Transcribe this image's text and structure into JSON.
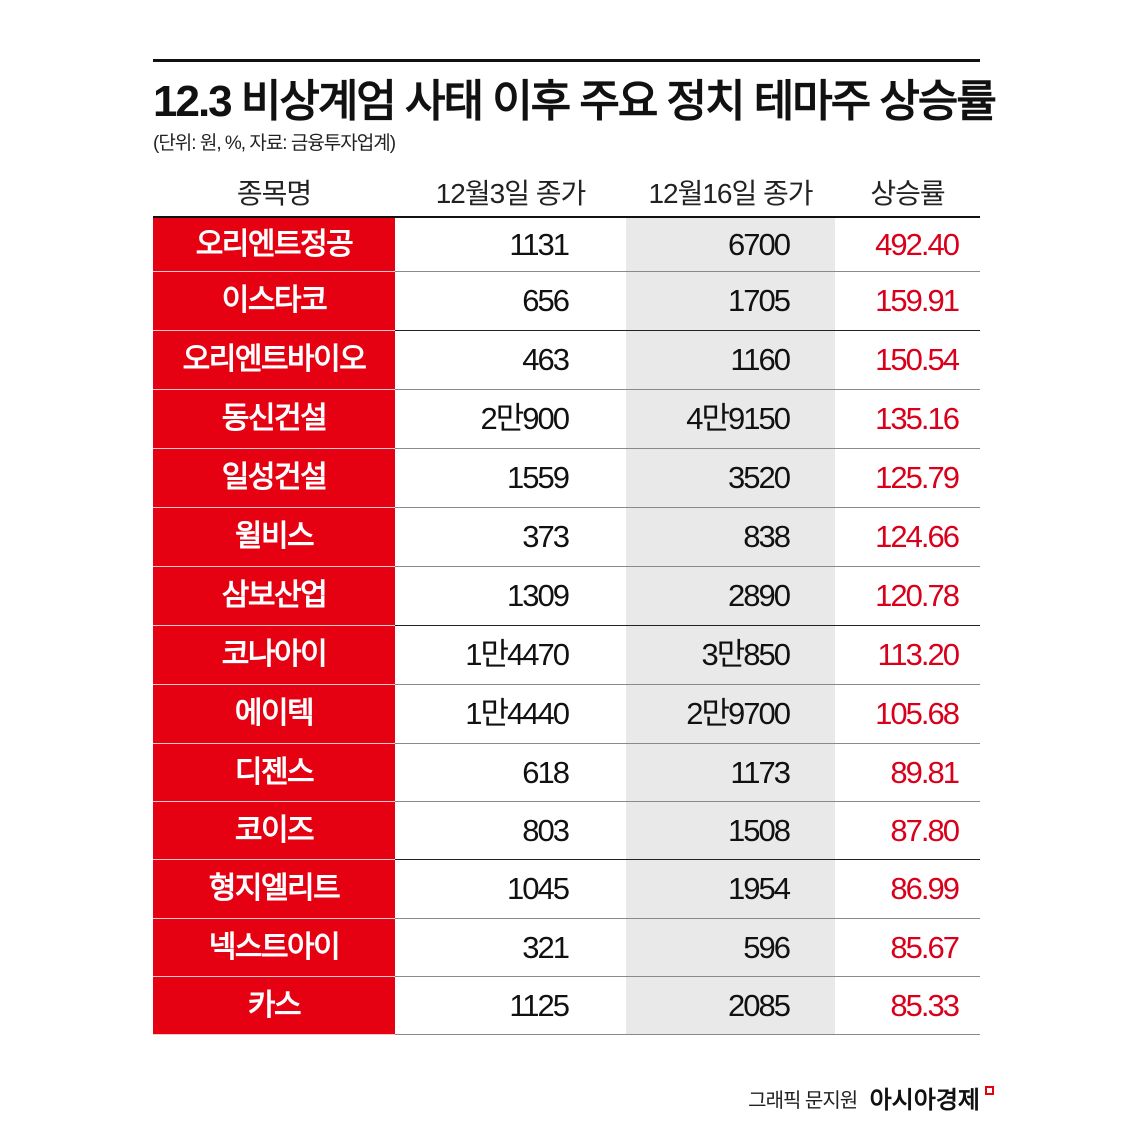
{
  "title": "12.3 비상계엄 사태 이후 주요 정치 테마주 상승률",
  "subtitle": "(단위: 원, %, 자료: 금융투자업계)",
  "columns": [
    "종목명",
    "12월3일 종가",
    "12월16일 종가",
    "상승률"
  ],
  "rows": [
    {
      "name": "오리엔트정공",
      "dec3": "1131",
      "dec16": "6700",
      "rate": "492.40"
    },
    {
      "name": "이스타코",
      "dec3": "656",
      "dec16": "1705",
      "rate": "159.91"
    },
    {
      "name": "오리엔트바이오",
      "dec3": "463",
      "dec16": "1160",
      "rate": "150.54"
    },
    {
      "name": "동신건설",
      "dec3": "2만900",
      "dec16": "4만9150",
      "rate": "135.16"
    },
    {
      "name": "일성건설",
      "dec3": "1559",
      "dec16": "3520",
      "rate": "125.79"
    },
    {
      "name": "윌비스",
      "dec3": "373",
      "dec16": "838",
      "rate": "124.66"
    },
    {
      "name": "삼보산업",
      "dec3": "1309",
      "dec16": "2890",
      "rate": "120.78"
    },
    {
      "name": "코나아이",
      "dec3": "1만4470",
      "dec16": "3만850",
      "rate": "113.20"
    },
    {
      "name": "에이텍",
      "dec3": "1만4440",
      "dec16": "2만9700",
      "rate": "105.68"
    },
    {
      "name": "디젠스",
      "dec3": "618",
      "dec16": "1173",
      "rate": "89.81"
    },
    {
      "name": "코이즈",
      "dec3": "803",
      "dec16": "1508",
      "rate": "87.80"
    },
    {
      "name": "형지엘리트",
      "dec3": "1045",
      "dec16": "1954",
      "rate": "86.99"
    },
    {
      "name": "넥스트아이",
      "dec3": "321",
      "dec16": "596",
      "rate": "85.67"
    },
    {
      "name": "카스",
      "dec3": "1125",
      "dec16": "2085",
      "rate": "85.33"
    }
  ],
  "footer": {
    "credit": "그래픽 문지원",
    "brand": "아시아경제"
  },
  "colors": {
    "accent_red": "#e50012",
    "rate_text": "#d9001b",
    "highlight_column": "#e9e9e9"
  },
  "chart_data": {
    "type": "table",
    "title": "12.3 비상계엄 사태 이후 주요 정치 테마주 상승률",
    "subtitle": "(단위: 원, %, 자료: 금융투자업계)",
    "columns": [
      "종목명",
      "12월3일 종가",
      "12월16일 종가",
      "상승률"
    ],
    "categories": [
      "오리엔트정공",
      "이스타코",
      "오리엔트바이오",
      "동신건설",
      "일성건설",
      "윌비스",
      "삼보산업",
      "코나아이",
      "에이텍",
      "디젠스",
      "코이즈",
      "형지엘리트",
      "넥스트아이",
      "카스"
    ],
    "series": [
      {
        "name": "12월3일 종가",
        "unit": "원",
        "values": [
          1131,
          656,
          463,
          20900,
          1559,
          373,
          1309,
          14470,
          14440,
          618,
          803,
          1045,
          321,
          1125
        ]
      },
      {
        "name": "12월16일 종가",
        "unit": "원",
        "values": [
          6700,
          1705,
          1160,
          49150,
          3520,
          838,
          2890,
          30850,
          29700,
          1173,
          1508,
          1954,
          596,
          2085
        ]
      },
      {
        "name": "상승률",
        "unit": "%",
        "values": [
          492.4,
          159.91,
          150.54,
          135.16,
          125.79,
          124.66,
          120.78,
          113.2,
          105.68,
          89.81,
          87.8,
          86.99,
          85.67,
          85.33
        ]
      }
    ],
    "source": "금융투자업계"
  }
}
